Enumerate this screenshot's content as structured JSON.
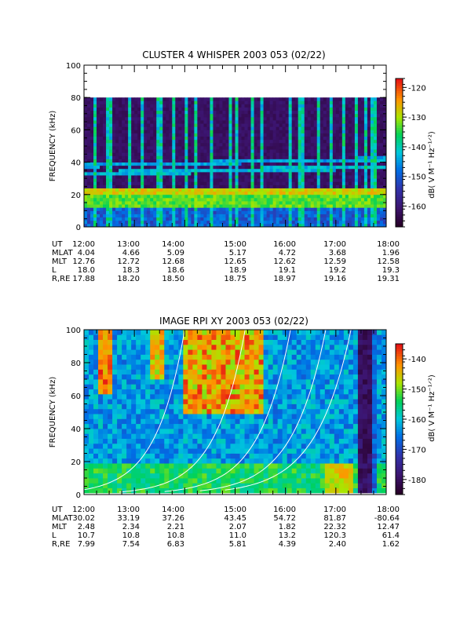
{
  "chart_data": [
    {
      "type": "heatmap",
      "title": "CLUSTER 4 WHISPER 2003 053 (02/22)",
      "ylabel": "FREQUENCY (kHz)",
      "ylim": [
        0,
        100
      ],
      "yticks": [
        "0",
        "20",
        "40",
        "60",
        "80",
        "100"
      ],
      "xlim_hours": [
        12,
        18
      ],
      "colorbar": {
        "label": "dB( V M⁻¹ Hz⁻¹ᐟ²)",
        "ticks": [
          "-120",
          "-130",
          "-140",
          "-150",
          "-160"
        ],
        "range": [
          -167,
          -117
        ]
      },
      "data_extent_khz": [
        0,
        80
      ],
      "background_dB": -162,
      "bands": [
        {
          "freq": 33,
          "width": 1.5,
          "level_dB": -143
        },
        {
          "freq": 38,
          "width": 1.2,
          "level_dB": -145
        },
        {
          "freq": 17,
          "width": 6,
          "level_dB": -133
        },
        {
          "freq": 22,
          "width": 3,
          "level_dB": -128
        }
      ],
      "bursts_hours": [
        12.2,
        12.45,
        12.55,
        12.9,
        13.15,
        13.5,
        13.8,
        14.05,
        14.2,
        14.55,
        14.9,
        15.05,
        15.35,
        15.55,
        16.1,
        16.3,
        16.35,
        16.65,
        16.9,
        17.15,
        17.4,
        17.6,
        17.75
      ],
      "ephemeris": {
        "labels": [
          "UT",
          "MLAT",
          "MLT",
          "L",
          "R,RE"
        ],
        "columns": [
          [
            "12:00",
            "4.04",
            "12.76",
            "18.0",
            "17.88"
          ],
          [
            "13:00",
            "4.66",
            "12.72",
            "18.3",
            "18.20"
          ],
          [
            "14:00",
            "5.09",
            "12.68",
            "18.6",
            "18.50"
          ],
          [
            "15:00",
            "5.17",
            "12.65",
            "18.9",
            "18.75"
          ],
          [
            "16:00",
            "4.72",
            "12.62",
            "19.1",
            "18.97"
          ],
          [
            "17:00",
            "3.68",
            "12.59",
            "19.2",
            "19.16"
          ],
          [
            "18:00",
            "1.96",
            "12.58",
            "19.3",
            "19.31"
          ]
        ]
      }
    },
    {
      "type": "heatmap",
      "title": "IMAGE RPI XY 2003 053 (02/22)",
      "ylabel": "FREQUENCY (kHz)",
      "ylim": [
        0,
        100
      ],
      "yticks": [
        "0",
        "20",
        "40",
        "60",
        "80",
        "100"
      ],
      "xlim_hours": [
        12,
        18
      ],
      "colorbar": {
        "label": "dB( V M⁻¹ Hz⁻¹ᐟ²)",
        "ticks": [
          "-140",
          "-150",
          "-160",
          "-170",
          "-180"
        ],
        "range": [
          -185,
          -135
        ]
      },
      "curves": [
        {
          "h0": 14.0,
          "k": 1.1
        },
        {
          "h0": 15.2,
          "k": 1.05
        },
        {
          "h0": 16.1,
          "k": 1.0
        },
        {
          "h0": 16.8,
          "k": 0.95
        },
        {
          "h0": 17.3,
          "k": 0.9
        }
      ],
      "ephemeris": {
        "labels": [
          "UT",
          "MLAT",
          "MLT",
          "L",
          "R,RE"
        ],
        "columns": [
          [
            "12:00",
            "30.02",
            "2.48",
            "10.7",
            "7.99"
          ],
          [
            "13:00",
            "33.19",
            "2.34",
            "10.8",
            "7.54"
          ],
          [
            "14:00",
            "37.26",
            "2.21",
            "10.8",
            "6.83"
          ],
          [
            "15:00",
            "43.45",
            "2.07",
            "11.0",
            "5.81"
          ],
          [
            "16:00",
            "54.72",
            "1.82",
            "13.2",
            "4.39"
          ],
          [
            "17:00",
            "81.87",
            "22.32",
            "120.3",
            "2.40"
          ],
          [
            "18:00",
            "-80.64",
            "12.47",
            "61.4",
            "1.62"
          ]
        ]
      }
    }
  ]
}
